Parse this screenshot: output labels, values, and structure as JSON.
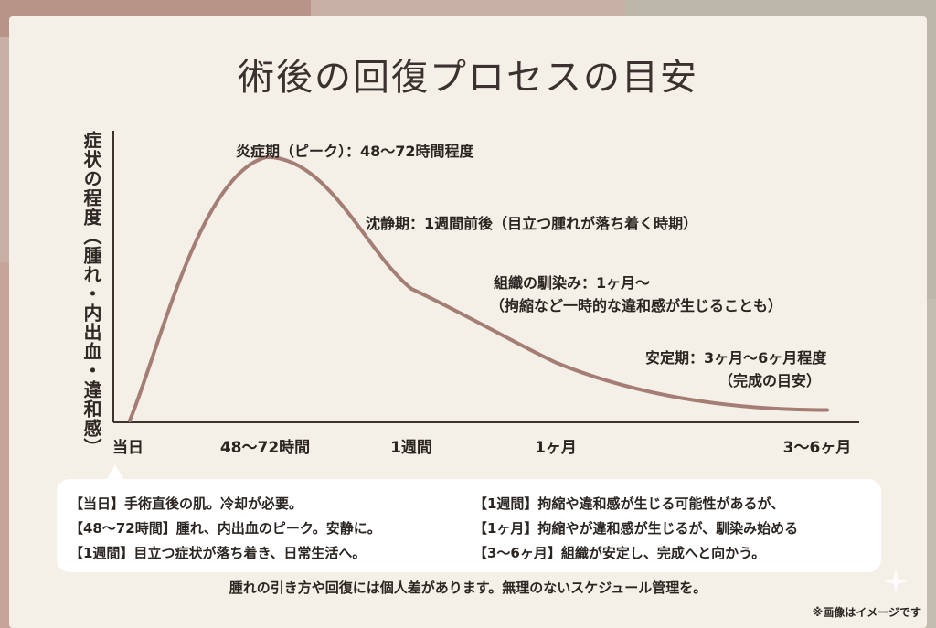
{
  "title": "術後の回復プロセスの目安",
  "chart_data": {
    "type": "line",
    "title": "術後の回復プロセスの目安",
    "ylabel": "症状の程度（腫れ・内出血・違和感）",
    "xlabel": "",
    "x_ticks": [
      "当日",
      "48〜72時間",
      "1週間",
      "1ヶ月",
      "3〜6ヶ月"
    ],
    "series": [
      {
        "x": [
          "当日",
          "48〜72時間",
          "1週間",
          "1ヶ月",
          "3〜6ヶ月"
        ],
        "values": [
          0,
          100,
          50,
          22,
          4
        ]
      }
    ],
    "ylim": [
      0,
      110
    ],
    "grid": false,
    "line_color": "#a47d74",
    "annotations": [
      "炎症期（ピーク）：48〜72時間程度",
      "沈静期：1週間前後（目立つ腫れが落ち着く時期）",
      "組織の馴染み：1ヶ月〜",
      "（拘縮など一時的な違和感が生じることも）",
      "安定期：3ヶ月〜6ヶ月程度",
      "（完成の目安）"
    ]
  },
  "notes": {
    "left": [
      "【当日】手術直後の肌。冷却が必要。",
      "【48〜72時間】腫れ、内出血のピーク。安静に。",
      "【1週間】目立つ症状が落ち着き、日常生活へ。"
    ],
    "right": [
      "【1週間】拘縮や違和感が生じる可能性があるが、",
      "【1ヶ月】拘縮やが違和感が生じるが、馴染み始める",
      "【3〜6ヶ月】組織が安定し、完成へと向かう。"
    ]
  },
  "footer": "腫れの引き方や回復には個人差があります。無理のないスケジュール管理を。",
  "disclaimer": "※画像はイメージです",
  "colors": {
    "curve": "#a47d74",
    "axis": "#3a3330",
    "card": "#f4efe7",
    "text": "#2b2522"
  }
}
